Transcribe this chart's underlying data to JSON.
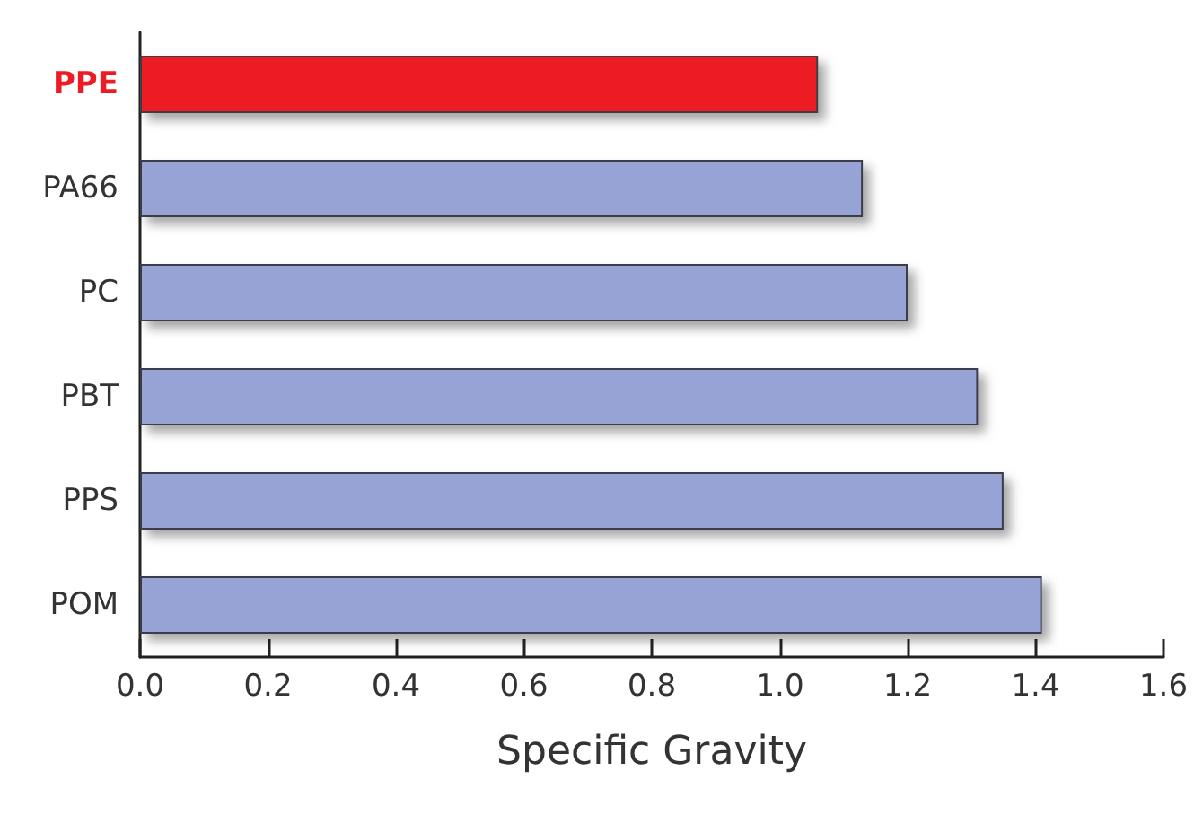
{
  "chart_data": {
    "type": "bar",
    "orientation": "horizontal",
    "xlabel": "Specific Gravity",
    "categories": [
      "PPE",
      "PA66",
      "PC",
      "PBT",
      "PPS",
      "POM"
    ],
    "values": [
      1.06,
      1.13,
      1.2,
      1.31,
      1.35,
      1.41
    ],
    "colors": [
      "#ed1c24",
      "#96a3d4",
      "#96a3d4",
      "#96a3d4",
      "#96a3d4",
      "#96a3d4"
    ],
    "xlim": [
      0,
      1.6
    ],
    "xticks": [
      {
        "value": 0,
        "label": "0.0"
      },
      0.2,
      0.4,
      0.6,
      0.8,
      {
        "value": 1,
        "label": "1.0"
      },
      1.2,
      1.4,
      1.6
    ],
    "grid": false
  }
}
